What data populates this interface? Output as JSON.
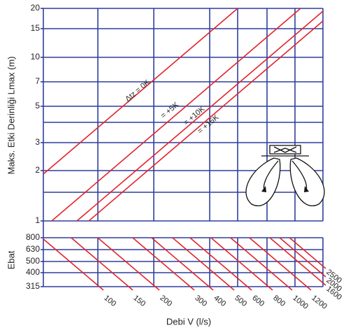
{
  "y_axis": {
    "label": "Maks. Etki Derinliği  Lmax (m)",
    "ticks": [
      20,
      15,
      10,
      7,
      5,
      3,
      2,
      1
    ]
  },
  "size_axis": {
    "label": "Ebat",
    "ticks": [
      800,
      630,
      500,
      400,
      315
    ]
  },
  "x_axis": {
    "label": "Debi  V (l/s)",
    "flow_labels": [
      100,
      150,
      200,
      300,
      400,
      500,
      600,
      800,
      1000,
      1200,
      1600,
      2000,
      2500
    ]
  },
  "curves": [
    "Δtz = 0K",
    "= +5K",
    "= +10K",
    "= +15K"
  ]
}
